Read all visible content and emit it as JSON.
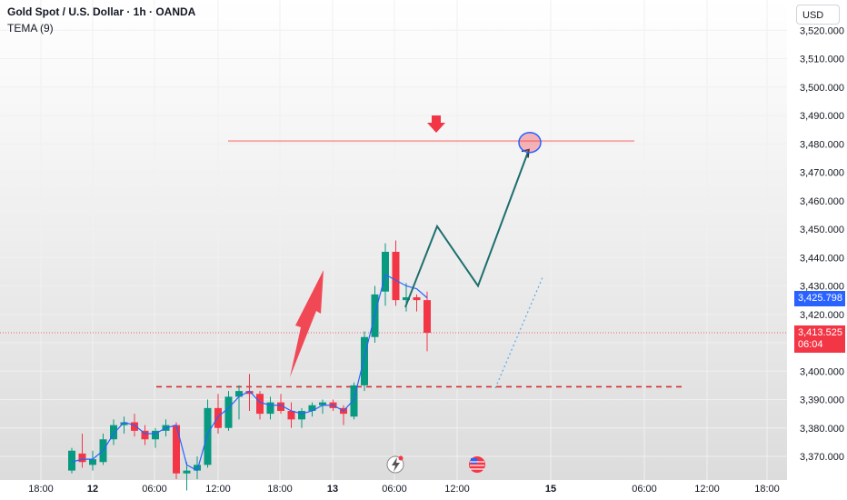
{
  "header": {
    "title": "Gold Spot / U.S. Dollar · 1h · OANDA",
    "indicator": "TEMA (9)"
  },
  "currency_button": "USD",
  "price_tags": {
    "tema_value": "3,425.798",
    "last_price": "3,413.525",
    "countdown": "06:04"
  },
  "colors": {
    "up": "#089981",
    "down": "#f23645",
    "tema_line": "#2962ff",
    "projection": "#1e6e6e",
    "resistance": "#f7a8a8",
    "support": "#d32f2f",
    "arrow": "#f23645",
    "last_price_line": "#f23645"
  },
  "icons": [
    "lightning-event-icon",
    "us-flag-event-icon"
  ],
  "chart_data": {
    "type": "candlestick",
    "y_ticks": [
      "3,370.000",
      "3,380.000",
      "3,390.000",
      "3,400.000",
      "3,410.000",
      "3,420.000",
      "3,430.000",
      "3,440.000",
      "3,450.000",
      "3,460.000",
      "3,470.000",
      "3,480.000",
      "3,490.000",
      "3,500.000",
      "3,510.000",
      "3,520.000"
    ],
    "x_ticks": [
      "18:00",
      "12",
      "06:00",
      "12:00",
      "18:00",
      "13",
      "06:00",
      "12:00",
      "15",
      "06:00",
      "12:00",
      "18:00"
    ],
    "ylim": [
      3364,
      3526
    ],
    "candles": [
      {
        "o": 3365,
        "h": 3373,
        "l": 3364,
        "c": 3372
      },
      {
        "o": 3371,
        "h": 3378,
        "l": 3366,
        "c": 3368
      },
      {
        "o": 3367,
        "h": 3372,
        "l": 3365,
        "c": 3369
      },
      {
        "o": 3368,
        "h": 3378,
        "l": 3367,
        "c": 3376
      },
      {
        "o": 3376,
        "h": 3383,
        "l": 3374,
        "c": 3381
      },
      {
        "o": 3381,
        "h": 3384,
        "l": 3378,
        "c": 3382
      },
      {
        "o": 3382,
        "h": 3385,
        "l": 3377,
        "c": 3379
      },
      {
        "o": 3379,
        "h": 3381,
        "l": 3374,
        "c": 3376
      },
      {
        "o": 3376,
        "h": 3380,
        "l": 3373,
        "c": 3379
      },
      {
        "o": 3379,
        "h": 3383,
        "l": 3377,
        "c": 3381
      },
      {
        "o": 3381,
        "h": 3382,
        "l": 3362,
        "c": 3364
      },
      {
        "o": 3364,
        "h": 3368,
        "l": 3358,
        "c": 3365
      },
      {
        "o": 3365,
        "h": 3370,
        "l": 3362,
        "c": 3367
      },
      {
        "o": 3367,
        "h": 3390,
        "l": 3366,
        "c": 3387
      },
      {
        "o": 3387,
        "h": 3392,
        "l": 3378,
        "c": 3380
      },
      {
        "o": 3380,
        "h": 3393,
        "l": 3379,
        "c": 3391
      },
      {
        "o": 3391,
        "h": 3395,
        "l": 3383,
        "c": 3393
      },
      {
        "o": 3393,
        "h": 3399,
        "l": 3386,
        "c": 3392
      },
      {
        "o": 3392,
        "h": 3393,
        "l": 3383,
        "c": 3385
      },
      {
        "o": 3385,
        "h": 3391,
        "l": 3383,
        "c": 3389
      },
      {
        "o": 3389,
        "h": 3392,
        "l": 3385,
        "c": 3386
      },
      {
        "o": 3386,
        "h": 3389,
        "l": 3380,
        "c": 3383
      },
      {
        "o": 3383,
        "h": 3387,
        "l": 3380,
        "c": 3386
      },
      {
        "o": 3386,
        "h": 3389,
        "l": 3384,
        "c": 3388
      },
      {
        "o": 3388,
        "h": 3390,
        "l": 3385,
        "c": 3389
      },
      {
        "o": 3389,
        "h": 3390,
        "l": 3386,
        "c": 3387
      },
      {
        "o": 3387,
        "h": 3388,
        "l": 3381,
        "c": 3385
      },
      {
        "o": 3384,
        "h": 3396,
        "l": 3383,
        "c": 3395
      },
      {
        "o": 3395,
        "h": 3414,
        "l": 3393,
        "c": 3412
      },
      {
        "o": 3412,
        "h": 3430,
        "l": 3410,
        "c": 3427
      },
      {
        "o": 3428,
        "h": 3445,
        "l": 3423,
        "c": 3442
      },
      {
        "o": 3442,
        "h": 3446,
        "l": 3423,
        "c": 3425
      },
      {
        "o": 3425,
        "h": 3431,
        "l": 3421,
        "c": 3426
      },
      {
        "o": 3426,
        "h": 3427,
        "l": 3421,
        "c": 3425
      },
      {
        "o": 3425,
        "h": 3428,
        "l": 3407,
        "c": 3413.5
      }
    ],
    "tema": [
      3368,
      3369,
      3369,
      3372,
      3378,
      3382,
      3381,
      3378,
      3378,
      3380,
      3381,
      3367,
      3365,
      3378,
      3384,
      3387,
      3391,
      3393,
      3389,
      3388,
      3388,
      3386,
      3385,
      3386,
      3388,
      3388,
      3386,
      3390,
      3405,
      3420,
      3434,
      3432,
      3430,
      3429,
      3425.8
    ],
    "projection_path": [
      [
        3422.5,
        0
      ],
      [
        3451,
        1
      ],
      [
        3430,
        2
      ],
      [
        3478,
        3
      ]
    ],
    "dotted_projection": [
      [
        3394,
        0
      ],
      [
        3433,
        1
      ]
    ],
    "support_level": 3394.5,
    "resistance_level": 3481,
    "last_price": 3413.525,
    "tema_last": 3425.798
  }
}
